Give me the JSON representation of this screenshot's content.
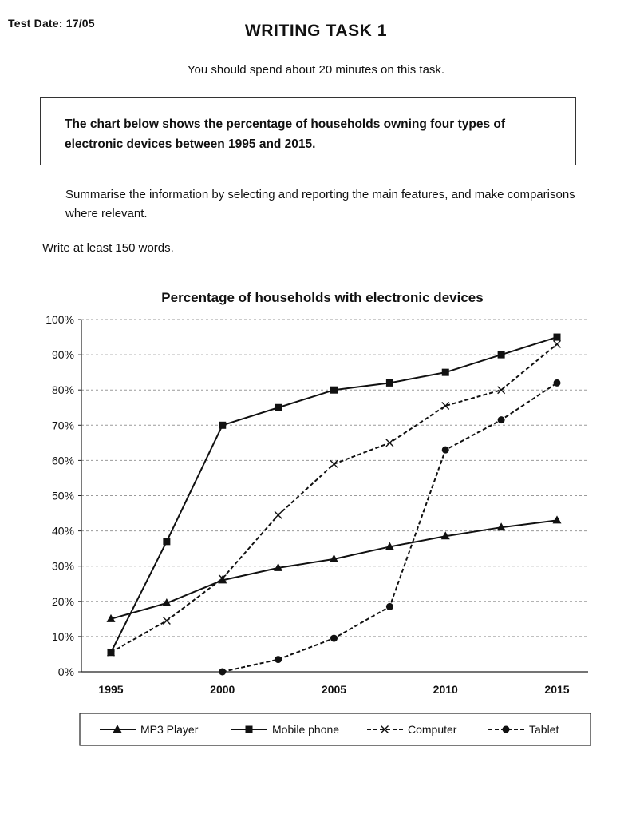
{
  "header": {
    "test_date": "Test Date: 17/05",
    "title": "WRITING TASK 1",
    "time_note": "You should spend about 20 minutes on this task."
  },
  "prompt": {
    "text": "The chart below shows the percentage of households owning four types of electronic devices between 1995 and 2015."
  },
  "instructions": {
    "summary": "Summarise the information by selecting and reporting the main features, and make comparisons where relevant.",
    "word_count": "Write at least 150 words."
  },
  "chart_data": {
    "type": "line",
    "title": "Percentage of households with electronic devices",
    "xlabel": "",
    "ylabel": "",
    "x_ticks": [
      "1995",
      "2000",
      "2005",
      "2010",
      "2015"
    ],
    "xlim": [
      1995,
      2015
    ],
    "y_ticks": [
      "0%",
      "10%",
      "20%",
      "30%",
      "40%",
      "50%",
      "60%",
      "70%",
      "80%",
      "90%",
      "100%"
    ],
    "ylim": [
      0,
      100
    ],
    "grid": "horizontal dashed",
    "legend_position": "bottom",
    "series": [
      {
        "name": "MP3 Player",
        "line_style": "solid",
        "marker": "triangle",
        "x": [
          1995,
          1997.5,
          2000,
          2002.5,
          2005,
          2007.5,
          2010,
          2012.5,
          2015
        ],
        "y": [
          15,
          19.5,
          26,
          29.5,
          32,
          35.5,
          38.5,
          41,
          43
        ]
      },
      {
        "name": "Mobile phone",
        "line_style": "solid",
        "marker": "square",
        "x": [
          1995,
          1997.5,
          2000,
          2002.5,
          2005,
          2007.5,
          2010,
          2012.5,
          2015
        ],
        "y": [
          5.5,
          37,
          70,
          75,
          80,
          82,
          85,
          90,
          95
        ]
      },
      {
        "name": "Computer",
        "line_style": "dashed",
        "marker": "x",
        "x": [
          1995,
          1997.5,
          2000,
          2002.5,
          2005,
          2007.5,
          2010,
          2012.5,
          2015
        ],
        "y": [
          5.5,
          14.5,
          26.5,
          44.5,
          59,
          65,
          75.5,
          80,
          93
        ]
      },
      {
        "name": "Tablet",
        "line_style": "dashed",
        "marker": "circle",
        "x": [
          2000,
          2002.5,
          2005,
          2007.5,
          2010,
          2012.5,
          2015
        ],
        "y": [
          0,
          3.5,
          9.5,
          18.5,
          63,
          71.5,
          82
        ]
      }
    ]
  }
}
